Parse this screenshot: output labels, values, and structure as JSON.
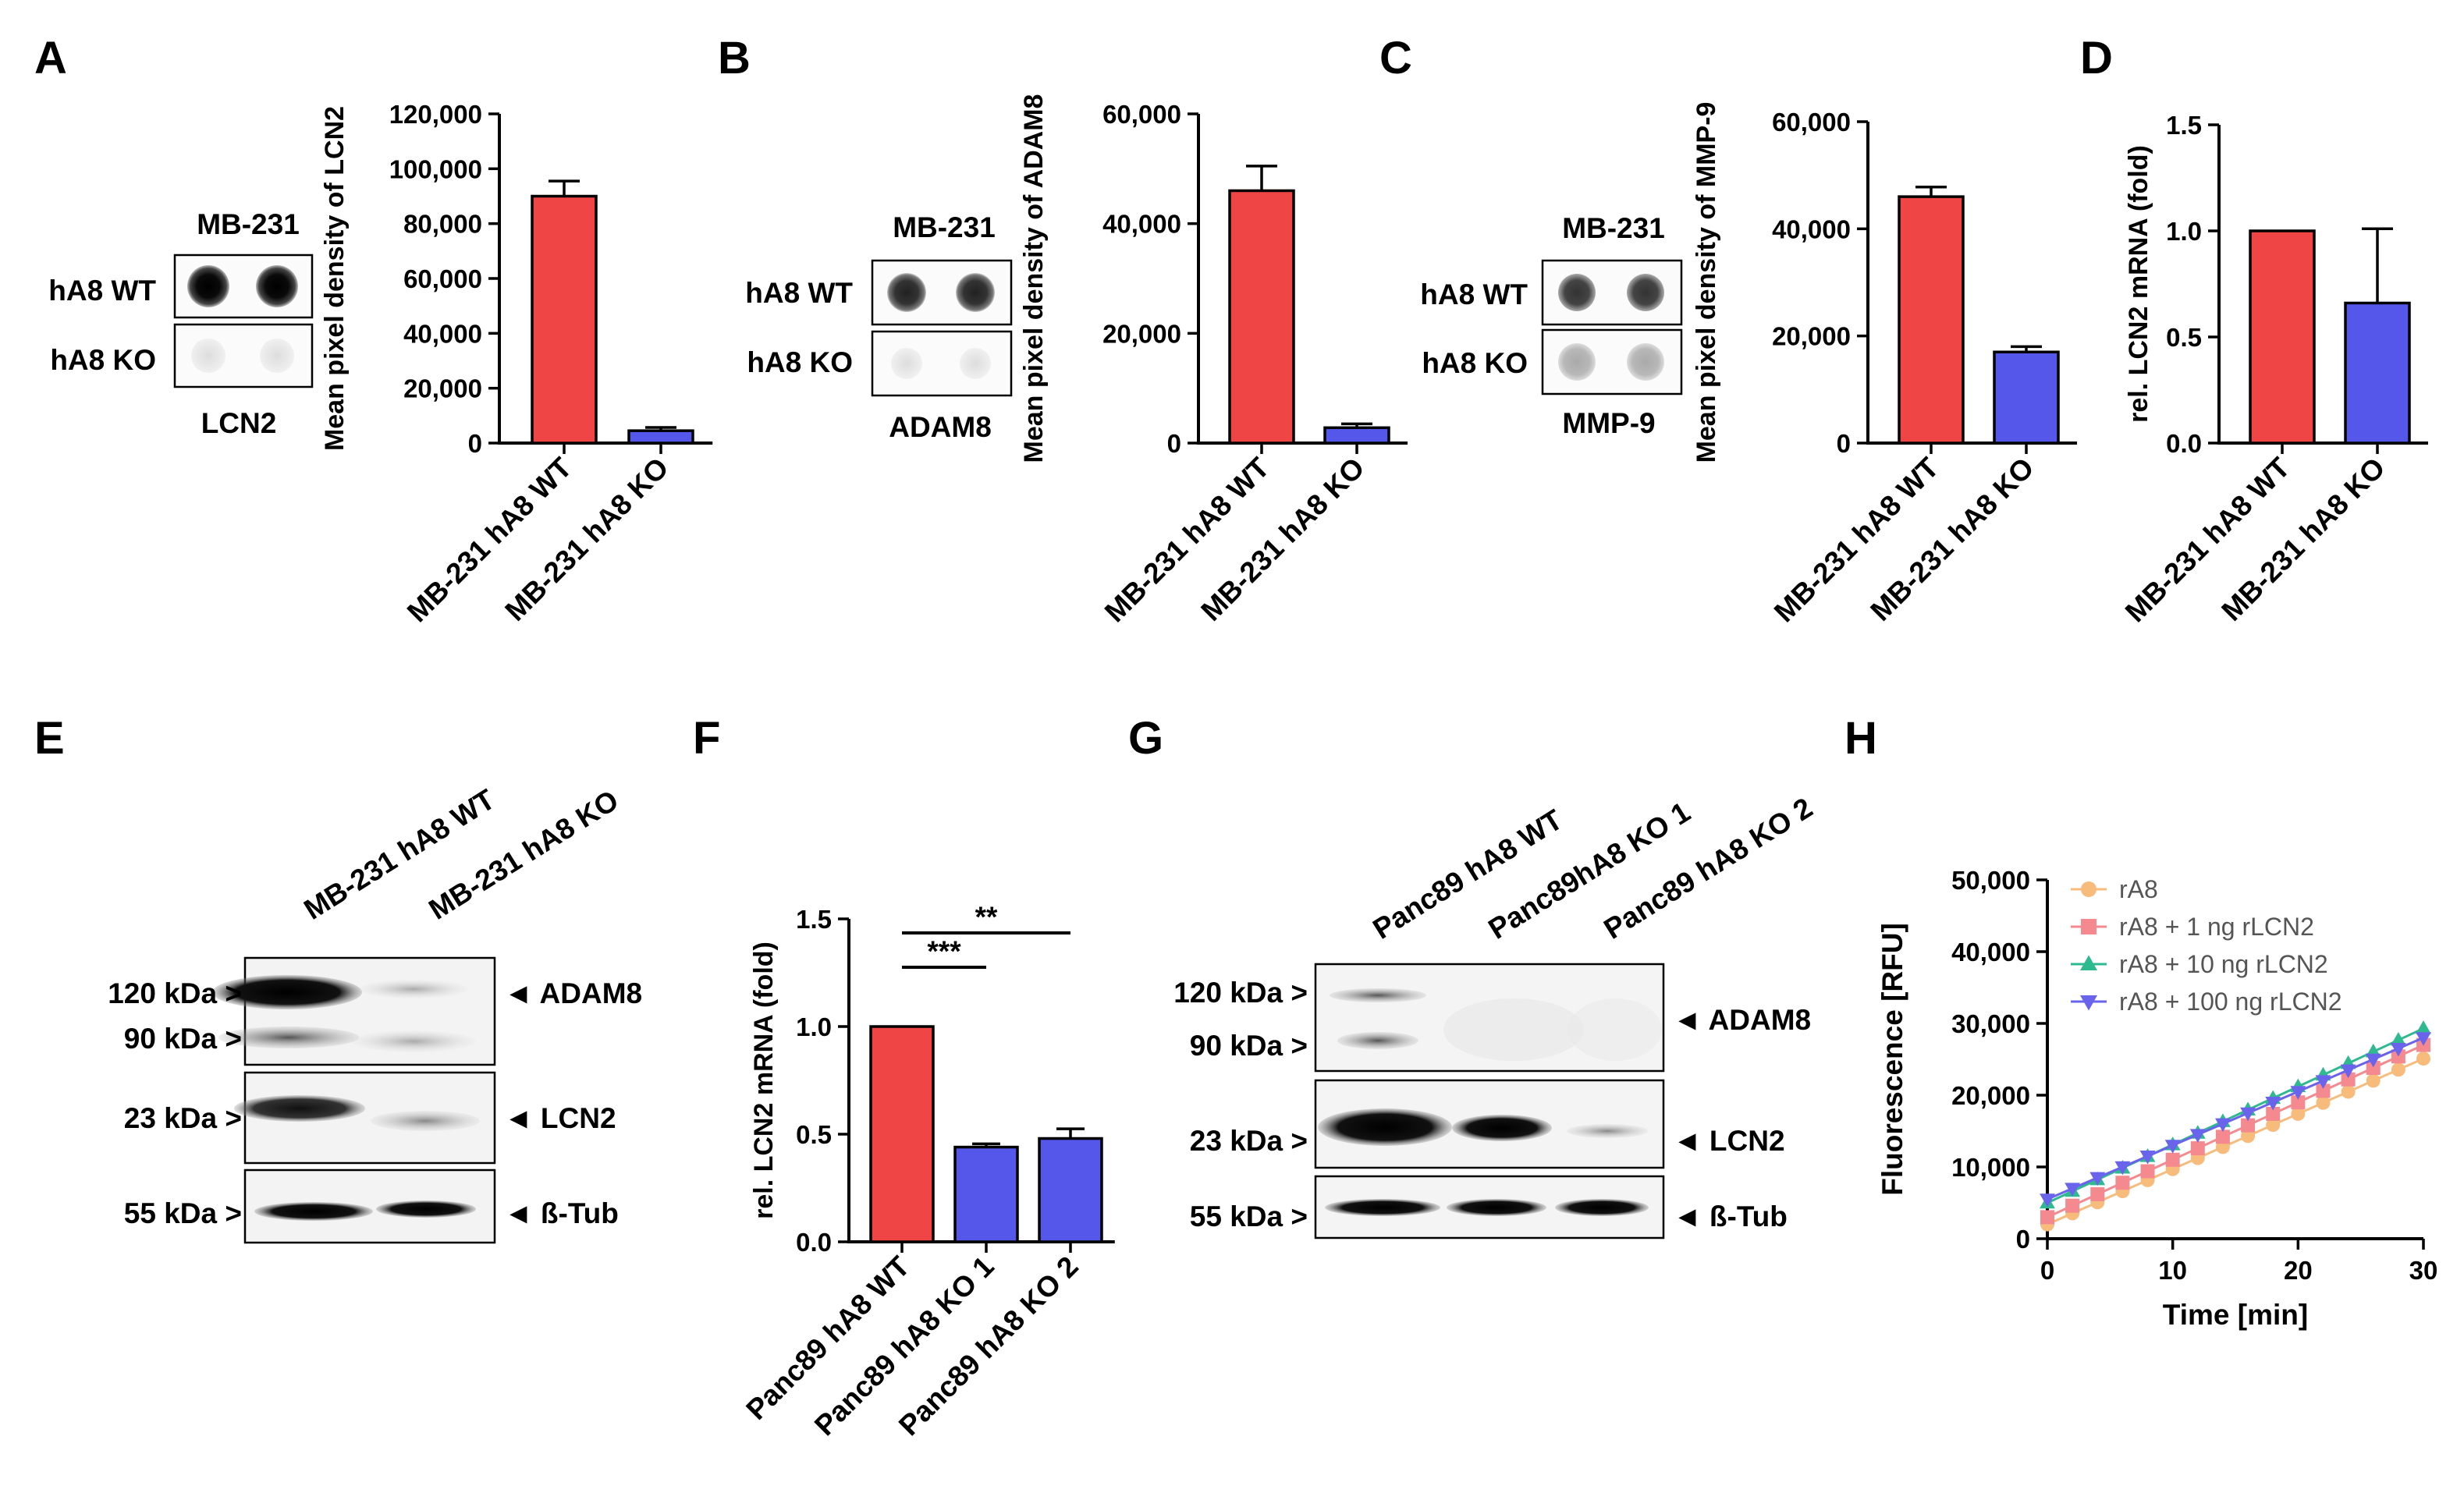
{
  "colors": {
    "wt": "#f04545",
    "ko": "#5457ea",
    "series": [
      "#f7bc7c",
      "#f48a8f",
      "#2fb990",
      "#6a64ec"
    ]
  },
  "panels": {
    "A": {
      "letter": "A",
      "blot": {
        "cell_line": "MB-231",
        "rows": [
          "hA8 WT",
          "hA8 KO"
        ],
        "protein": "LCN2"
      },
      "chart_data": {
        "type": "bar",
        "categories": [
          "MB-231 hA8 WT",
          "MB-231 hA8 KO"
        ],
        "values": [
          90000,
          4500
        ],
        "errors": [
          5500,
          1200
        ],
        "ylabel": "Mean pixel density of LCN2",
        "ylim": [
          0,
          120000
        ],
        "yticks": [
          0,
          20000,
          40000,
          60000,
          80000,
          100000,
          120000
        ],
        "ytick_labels": [
          "0",
          "20,000",
          "40,000",
          "60,000",
          "80,000",
          "100,000",
          "120,000"
        ]
      }
    },
    "B": {
      "letter": "B",
      "blot": {
        "cell_line": "MB-231",
        "rows": [
          "hA8 WT",
          "hA8 KO"
        ],
        "protein": "ADAM8"
      },
      "chart_data": {
        "type": "bar",
        "categories": [
          "MB-231 hA8 WT",
          "MB-231 hA8 KO"
        ],
        "values": [
          46000,
          2800
        ],
        "errors": [
          4500,
          700
        ],
        "ylabel": "Mean pixel density of ADAM8",
        "ylim": [
          0,
          60000
        ],
        "yticks": [
          0,
          20000,
          40000,
          60000
        ],
        "ytick_labels": [
          "0",
          "20,000",
          "40,000",
          "60,000"
        ]
      }
    },
    "C": {
      "letter": "C",
      "blot": {
        "cell_line": "MB-231",
        "rows": [
          "hA8 WT",
          "hA8 KO"
        ],
        "protein": "MMP-9"
      },
      "chart_data": {
        "type": "bar",
        "categories": [
          "MB-231 hA8 WT",
          "MB-231 hA8 KO"
        ],
        "values": [
          46000,
          17000
        ],
        "errors": [
          1800,
          1000
        ],
        "ylabel": "Mean pixel density of MMP-9",
        "ylim": [
          0,
          60000
        ],
        "yticks": [
          0,
          20000,
          40000,
          60000
        ],
        "ytick_labels": [
          "0",
          "20,000",
          "40,000",
          "60,000"
        ]
      }
    },
    "D": {
      "letter": "D",
      "chart_data": {
        "type": "bar",
        "categories": [
          "MB-231 hA8 WT",
          "MB-231 hA8 KO"
        ],
        "values": [
          1.0,
          0.66
        ],
        "errors": [
          0,
          0.35
        ],
        "ylabel": "rel. LCN2 mRNA (fold)",
        "ylim": [
          0,
          1.5
        ],
        "yticks": [
          0,
          0.5,
          1.0,
          1.5
        ],
        "ytick_labels": [
          "0.0",
          "0.5",
          "1.0",
          "1.5"
        ]
      }
    },
    "E": {
      "letter": "E",
      "lanes": [
        "MB-231 hA8 WT",
        "MB-231 hA8 KO"
      ],
      "markers": [
        "120 kDa >",
        "90 kDa >",
        "23 kDa >",
        "55 kDa >"
      ],
      "proteins": [
        "◄ ADAM8",
        "◄ LCN2",
        "◄ ß-Tub"
      ]
    },
    "F": {
      "letter": "F",
      "chart_data": {
        "type": "bar",
        "categories": [
          "Panc89 hA8 WT",
          "Panc89 hA8 KO 1",
          "Panc89 hA8 KO 2"
        ],
        "values": [
          1.0,
          0.44,
          0.48
        ],
        "errors": [
          0,
          0.015,
          0.045
        ],
        "ylabel": "rel. LCN2 mRNA (fold)",
        "ylim": [
          0,
          1.5
        ],
        "yticks": [
          0,
          0.5,
          1.0,
          1.5
        ],
        "ytick_labels": [
          "0.0",
          "0.5",
          "1.0",
          "1.5"
        ],
        "significance": [
          {
            "from": 0,
            "to": 2,
            "label": "**"
          },
          {
            "from": 0,
            "to": 1,
            "label": "***"
          }
        ]
      }
    },
    "G": {
      "letter": "G",
      "lanes": [
        "Panc89 hA8 WT",
        "Panc89hA8 KO 1",
        "Panc89 hA8 KO 2"
      ],
      "markers": [
        "120 kDa >",
        "90 kDa >",
        "23 kDa >",
        "55 kDa >"
      ],
      "proteins": [
        "◄ ADAM8",
        "◄ LCN2",
        "◄ ß-Tub"
      ]
    },
    "H": {
      "letter": "H",
      "chart_data": {
        "type": "scatter",
        "xlabel": "Time [min]",
        "ylabel": "Fluorescence [RFU]",
        "xlim": [
          0,
          30
        ],
        "ylim": [
          0,
          50000
        ],
        "xticks": [
          0,
          10,
          20,
          30
        ],
        "xtick_labels": [
          "0",
          "10",
          "20",
          "30"
        ],
        "yticks": [
          0,
          10000,
          20000,
          30000,
          40000,
          50000
        ],
        "ytick_labels": [
          "0",
          "10,000",
          "20,000",
          "30,000",
          "40,000",
          "50,000"
        ],
        "x": [
          0,
          2,
          4,
          6,
          8,
          10,
          12,
          14,
          16,
          18,
          20,
          22,
          24,
          26,
          28,
          30
        ],
        "series": [
          {
            "name": "rA8",
            "marker": "circle",
            "intercept": 2000,
            "slope": 770
          },
          {
            "name": "rA8 + 1 ng rLCN2",
            "marker": "square",
            "intercept": 3000,
            "slope": 800
          },
          {
            "name": "rA8 + 10 ng rLCN2",
            "marker": "triangle-up",
            "intercept": 5000,
            "slope": 810
          },
          {
            "name": "rA8 + 100 ng rLCN2",
            "marker": "triangle-down",
            "intercept": 5500,
            "slope": 750
          }
        ]
      }
    }
  }
}
